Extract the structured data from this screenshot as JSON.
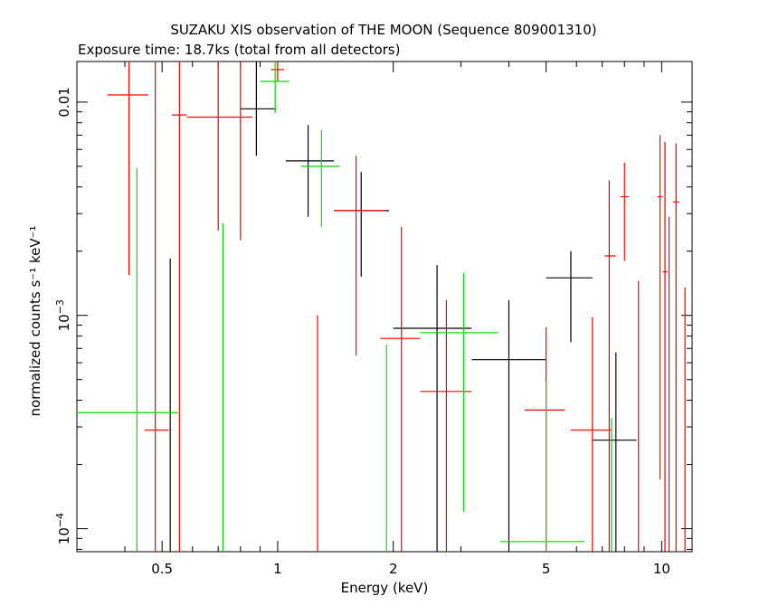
{
  "chart_data": {
    "type": "scatter",
    "title": "SUZAKU XIS observation of THE MOON (Sequence 809001310)",
    "subtitle": "Exposure time: 18.7ks (total from all detectors)",
    "xlabel": "Energy (keV)",
    "ylabel": "normalized counts s⁻¹ keV⁻¹",
    "xscale": "log",
    "yscale": "log",
    "xlim": [
      0.3,
      12
    ],
    "ylim": [
      7.8e-05,
      0.0155
    ],
    "x_ticks": [
      0.5,
      1,
      2,
      5,
      10
    ],
    "x_tick_labels": [
      "0.5",
      "1",
      "2",
      "5",
      "10"
    ],
    "y_ticks": [
      0.0001,
      0.001,
      0.01
    ],
    "y_tick_labels": [
      {
        "base": "10",
        "exp": "−4"
      },
      {
        "base": "10",
        "exp": "−3"
      },
      {
        "base": "0.01",
        "exp": ""
      }
    ],
    "grid": false,
    "legend": "none",
    "series": [
      {
        "color": "#000000",
        "points": [
          {
            "x": 0.525,
            "xlo": 0.525,
            "xhi": 0.525,
            "y": 0.0001,
            "ylo": 7.75e-05,
            "yhi": 0.00185
          },
          {
            "x": 0.88,
            "xlo": 0.8,
            "xhi": 0.99,
            "y": 0.0093,
            "ylo": 0.0056,
            "yhi": 0.0155
          },
          {
            "x": 1.2,
            "xlo": 1.05,
            "xhi": 1.4,
            "y": 0.0053,
            "ylo": 0.0029,
            "yhi": 0.0078
          },
          {
            "x": 1.65,
            "xlo": 1.4,
            "xhi": 1.95,
            "y": 0.0031,
            "ylo": 0.00152,
            "yhi": 0.0047
          },
          {
            "x": 2.6,
            "xlo": 2.0,
            "xhi": 3.2,
            "y": 0.00087,
            "ylo": 7.75e-05,
            "yhi": 0.00172
          },
          {
            "x": 4.0,
            "xlo": 3.2,
            "xhi": 5.0,
            "y": 0.00062,
            "ylo": 7.75e-05,
            "yhi": 0.00118
          },
          {
            "x": 5.8,
            "xlo": 5.0,
            "xhi": 6.6,
            "y": 0.0015,
            "ylo": 0.00075,
            "yhi": 0.002
          },
          {
            "x": 7.6,
            "xlo": 6.6,
            "xhi": 8.6,
            "y": 0.00026,
            "ylo": 7.75e-05,
            "yhi": 0.00067
          }
        ]
      },
      {
        "color": "#ff0000",
        "points": [
          {
            "x": 0.41,
            "xlo": 0.36,
            "xhi": 0.46,
            "y": 0.0108,
            "ylo": 0.00155,
            "yhi": 0.0155
          },
          {
            "x": 0.48,
            "xlo": 0.45,
            "xhi": 0.52,
            "y": 0.00029,
            "ylo": 7.75e-05,
            "yhi": 0.0155
          },
          {
            "x": 0.555,
            "xlo": 0.53,
            "xhi": 0.58,
            "y": 0.0087,
            "ylo": 7.75e-05,
            "yhi": 0.0155
          },
          {
            "x": 0.7,
            "xlo": 0.58,
            "xhi": 0.86,
            "y": 0.0085,
            "ylo": 0.0025,
            "yhi": 0.0155
          },
          {
            "x": 0.8,
            "xlo": 0.8,
            "xhi": 0.8,
            "y": 0.0085,
            "ylo": 0.00225,
            "yhi": 0.0155
          },
          {
            "x": 1.0,
            "xlo": 0.96,
            "xhi": 1.04,
            "y": 0.0142,
            "ylo": 0.0125,
            "yhi": 0.0155
          },
          {
            "x": 1.27,
            "xlo": 1.27,
            "xhi": 1.27,
            "y": 0.0001,
            "ylo": 7.75e-05,
            "yhi": 0.001
          },
          {
            "x": 1.6,
            "xlo": 1.4,
            "xhi": 1.9,
            "y": 0.0031,
            "ylo": 0.00065,
            "yhi": 0.0056
          },
          {
            "x": 2.1,
            "xlo": 1.85,
            "xhi": 2.35,
            "y": 0.00078,
            "ylo": 7.75e-05,
            "yhi": 0.0026
          },
          {
            "x": 2.75,
            "xlo": 2.35,
            "xhi": 3.2,
            "y": 0.00044,
            "ylo": 7.75e-05,
            "yhi": 0.00118
          },
          {
            "x": 5.0,
            "xlo": 4.4,
            "xhi": 5.6,
            "y": 0.00036,
            "ylo": 7.75e-05,
            "yhi": 0.00088
          },
          {
            "x": 6.6,
            "xlo": 5.8,
            "xhi": 7.4,
            "y": 0.00029,
            "ylo": 7.75e-05,
            "yhi": 0.00098
          },
          {
            "x": 7.3,
            "xlo": 7.1,
            "xhi": 7.6,
            "y": 0.0019,
            "ylo": 7.75e-05,
            "yhi": 0.0043
          },
          {
            "x": 8.0,
            "xlo": 7.8,
            "xhi": 8.2,
            "y": 0.0036,
            "ylo": 0.0018,
            "yhi": 0.0052
          },
          {
            "x": 8.7,
            "xlo": 8.7,
            "xhi": 8.7,
            "y": 0.0001,
            "ylo": 7.75e-05,
            "yhi": 0.00145
          },
          {
            "x": 9.9,
            "xlo": 9.75,
            "xhi": 10.05,
            "y": 0.0036,
            "ylo": 0.00017,
            "yhi": 0.007
          },
          {
            "x": 10.2,
            "xlo": 10.05,
            "xhi": 10.35,
            "y": 0.0016,
            "ylo": 7.75e-05,
            "yhi": 0.0065
          },
          {
            "x": 10.45,
            "xlo": 10.45,
            "xhi": 10.45,
            "y": 0.0001,
            "ylo": 7.75e-05,
            "yhi": 0.0029
          },
          {
            "x": 10.9,
            "xlo": 10.7,
            "xhi": 11.1,
            "y": 0.0034,
            "ylo": 7.75e-05,
            "yhi": 0.0064
          },
          {
            "x": 11.5,
            "xlo": 11.5,
            "xhi": 11.5,
            "y": 0.0001,
            "ylo": 7.75e-05,
            "yhi": 0.00135
          }
        ]
      },
      {
        "color": "#00dd00",
        "points": [
          {
            "x": 0.43,
            "xlo": 0.3,
            "xhi": 0.55,
            "y": 0.00035,
            "ylo": 7.75e-05,
            "yhi": 0.0049
          },
          {
            "x": 0.72,
            "xlo": 0.72,
            "xhi": 0.72,
            "y": 0.0001,
            "ylo": 7.75e-05,
            "yhi": 0.0027
          },
          {
            "x": 0.985,
            "xlo": 0.9,
            "xhi": 1.07,
            "y": 0.0125,
            "ylo": 0.0089,
            "yhi": 0.0155
          },
          {
            "x": 1.3,
            "xlo": 1.15,
            "xhi": 1.45,
            "y": 0.005,
            "ylo": 0.0026,
            "yhi": 0.0074
          },
          {
            "x": 1.92,
            "xlo": 1.92,
            "xhi": 1.92,
            "y": 0.0001,
            "ylo": 7.75e-05,
            "yhi": 0.00073
          },
          {
            "x": 3.05,
            "xlo": 2.35,
            "xhi": 3.75,
            "y": 0.00083,
            "ylo": 0.00012,
            "yhi": 0.00158
          },
          {
            "x": 5.0,
            "xlo": 3.8,
            "xhi": 6.3,
            "y": 8.7e-05,
            "ylo": 7.75e-05,
            "yhi": 0.00049
          },
          {
            "x": 7.4,
            "xlo": 7.4,
            "xhi": 7.4,
            "y": 0.0001,
            "ylo": 7.75e-05,
            "yhi": 0.00033
          }
        ]
      }
    ]
  }
}
